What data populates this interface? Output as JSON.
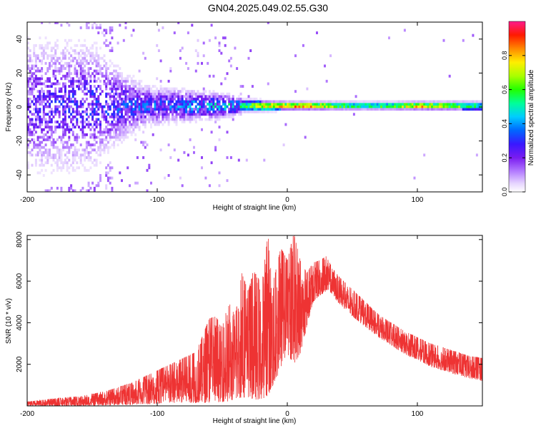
{
  "title": "GN04.2025.049.02.55.G30",
  "chart_data": [
    {
      "type": "heatmap",
      "xlabel": "Height of straight line (km)",
      "ylabel": "Frequency (Hz)",
      "xlim": [
        -200,
        150
      ],
      "ylim": [
        -50,
        50
      ],
      "xticks": [
        -200,
        -100,
        0,
        100
      ],
      "yticks": [
        -40,
        -20,
        0,
        20,
        40
      ],
      "colorbar": {
        "label": "Normalized spectral amplitude",
        "range": [
          0,
          1
        ],
        "ticks": [
          0.0,
          0.2,
          0.4,
          0.6,
          0.8
        ],
        "tick_labels": [
          "0.0",
          "0.2",
          "0.4",
          "0.6",
          "0.8"
        ]
      },
      "description_points": {
        "band_center_hz": 0,
        "band_halfwidth_hz": [
          [
            -200,
            50
          ],
          [
            -150,
            45
          ],
          [
            -135,
            30
          ],
          [
            -110,
            14
          ],
          [
            -80,
            11
          ],
          [
            -50,
            8
          ],
          [
            -35,
            5
          ],
          [
            0,
            3
          ],
          [
            50,
            3
          ],
          [
            100,
            3
          ],
          [
            150,
            3.5
          ]
        ],
        "peak_amplitude": [
          [
            -200,
            0.25
          ],
          [
            -150,
            0.3
          ],
          [
            -100,
            0.35
          ],
          [
            -60,
            0.45
          ],
          [
            -35,
            0.55
          ],
          [
            -20,
            0.8
          ],
          [
            0,
            0.85
          ],
          [
            10,
            0.9
          ],
          [
            50,
            0.6
          ],
          [
            80,
            0.65
          ],
          [
            100,
            0.85
          ],
          [
            150,
            0.55
          ]
        ]
      }
    },
    {
      "type": "line",
      "color": "#ee3333",
      "xlabel": "Height of straight line (km)",
      "ylabel": "SNR (10 * v/v)",
      "xlim": [
        -200,
        150
      ],
      "ylim": [
        0,
        8200
      ],
      "xticks": [
        -200,
        -100,
        0,
        100
      ],
      "yticks": [
        2000,
        4000,
        6000,
        8000
      ],
      "envelope": {
        "x": [
          -200,
          -180,
          -160,
          -140,
          -120,
          -100,
          -90,
          -80,
          -70,
          -60,
          -55,
          -50,
          -45,
          -40,
          -35,
          -30,
          -25,
          -20,
          -15,
          -10,
          -5,
          0,
          5,
          10,
          15,
          20,
          25,
          30,
          35,
          40,
          50,
          60,
          70,
          80,
          90,
          100,
          110,
          120,
          130,
          140,
          150
        ],
        "low": [
          0,
          0,
          0,
          30,
          50,
          100,
          100,
          150,
          150,
          150,
          200,
          200,
          200,
          300,
          400,
          400,
          300,
          300,
          500,
          1000,
          1800,
          2500,
          2000,
          2500,
          3800,
          5000,
          5300,
          5500,
          5300,
          4900,
          4300,
          3800,
          3300,
          2900,
          2500,
          2200,
          1900,
          1700,
          1500,
          1300,
          1200
        ],
        "high": [
          200,
          350,
          450,
          700,
          1100,
          1700,
          2000,
          2300,
          2600,
          4200,
          4300,
          3800,
          5000,
          4300,
          6400,
          5500,
          6800,
          5600,
          8200,
          6200,
          7600,
          7000,
          8300,
          7000,
          6400,
          6900,
          7000,
          7200,
          6600,
          6200,
          5600,
          5000,
          4400,
          4000,
          3600,
          3300,
          3000,
          2800,
          2600,
          2400,
          2300
        ]
      }
    }
  ]
}
